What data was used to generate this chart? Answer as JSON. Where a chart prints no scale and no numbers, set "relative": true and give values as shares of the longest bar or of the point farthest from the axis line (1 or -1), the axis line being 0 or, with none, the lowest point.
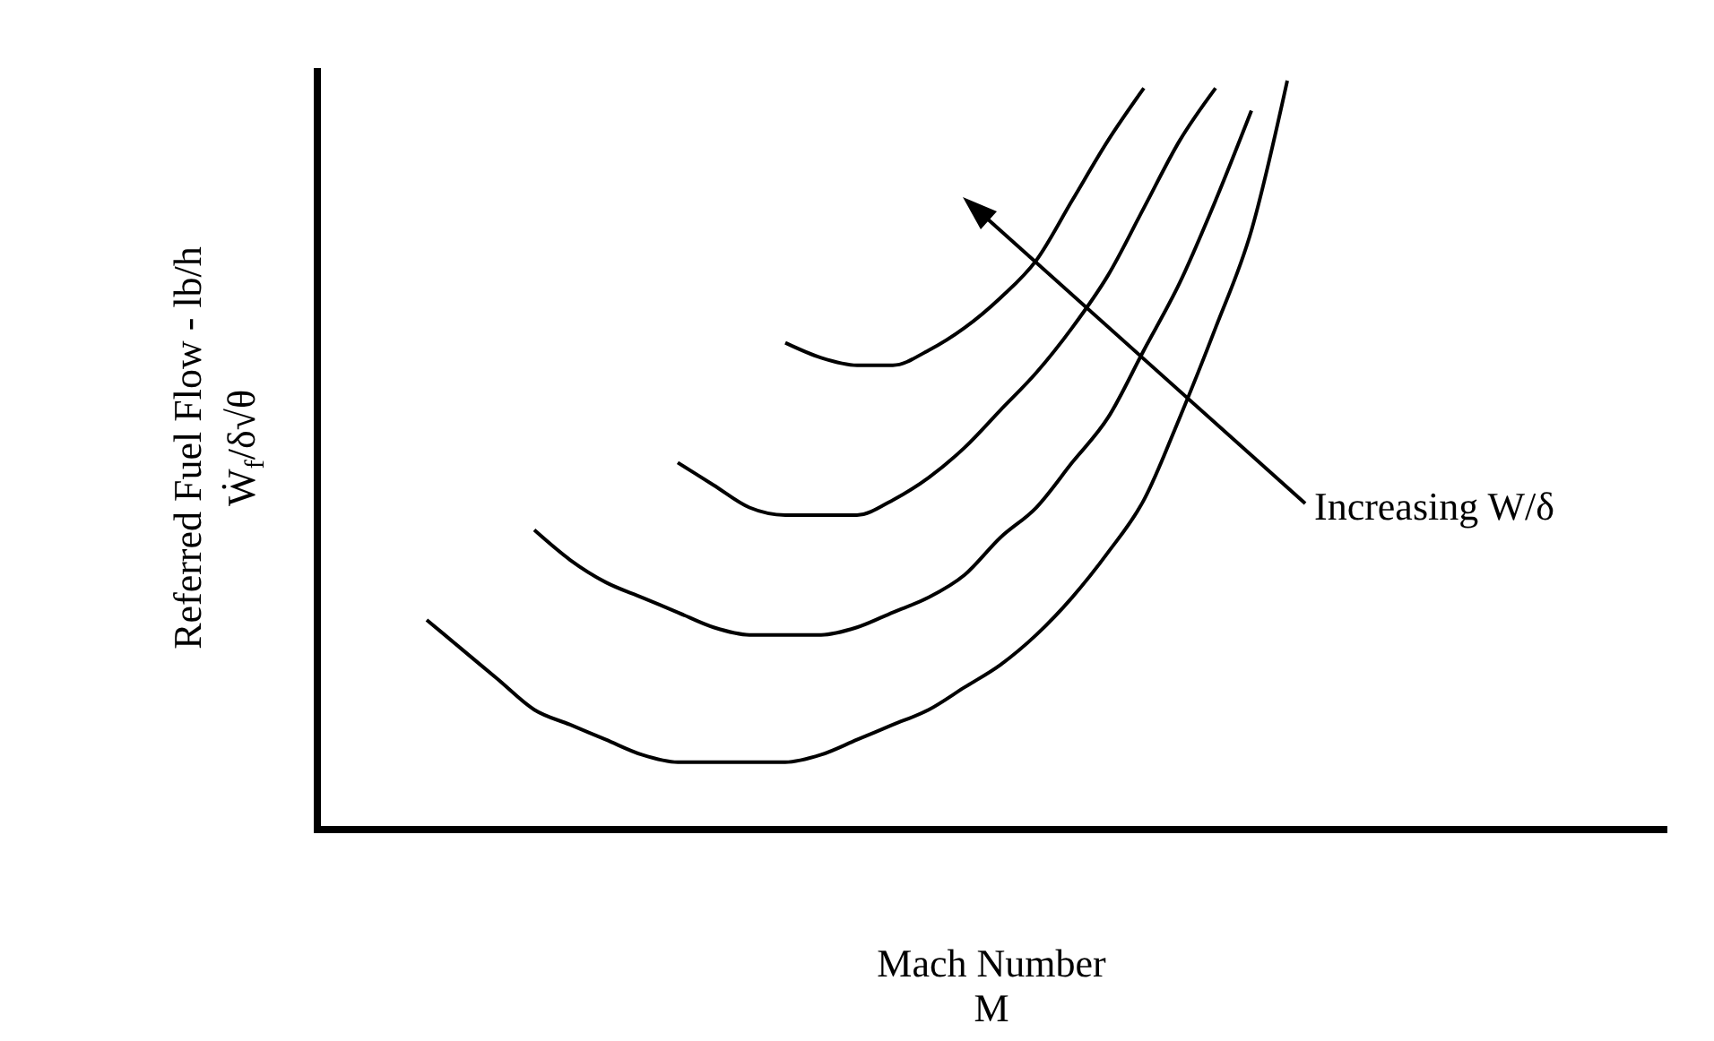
{
  "chart_data": {
    "type": "line",
    "relative": true,
    "xlabel": "Mach Number\nM",
    "ylabel": "Referred Fuel Flow - lb/h\nẆ$_{f}$/δ√θ",
    "marker": "none",
    "line_style": "solid",
    "categories": [
      null,
      null,
      null,
      null,
      null,
      null,
      null,
      null,
      null,
      null,
      null,
      null,
      null,
      null,
      null,
      null,
      null,
      null,
      null,
      null,
      null,
      null,
      null,
      null,
      null
    ],
    "series": [
      {
        "color": "#000000",
        "values": [
          0.28,
          0.24,
          0.2,
          0.16,
          0.14,
          0.12,
          0.1,
          0.09,
          0.09,
          0.09,
          0.09,
          0.1,
          0.12,
          0.14,
          0.16,
          0.19,
          0.22,
          0.26,
          0.31,
          0.37,
          0.44,
          0.55,
          0.67,
          0.8,
          1.0
        ]
      },
      {
        "color": "#000000",
        "values": [
          null,
          null,
          null,
          0.4,
          0.36,
          0.33,
          0.31,
          0.29,
          0.27,
          0.26,
          0.26,
          0.26,
          0.27,
          0.29,
          0.31,
          0.34,
          0.39,
          0.43,
          0.49,
          0.55,
          0.64,
          0.73,
          0.84,
          0.96,
          null
        ]
      },
      {
        "color": "#000000",
        "values": [
          null,
          null,
          null,
          null,
          null,
          null,
          null,
          0.49,
          0.46,
          0.43,
          0.42,
          0.42,
          0.42,
          0.44,
          0.47,
          0.51,
          0.56,
          0.61,
          0.67,
          0.74,
          0.83,
          0.92,
          0.99,
          null,
          null
        ]
      },
      {
        "color": "#000000",
        "values": [
          null,
          null,
          null,
          null,
          null,
          null,
          null,
          null,
          null,
          null,
          0.65,
          0.63,
          0.62,
          0.62,
          0.64,
          0.67,
          0.71,
          0.76,
          0.84,
          0.92,
          0.99,
          null,
          null,
          null,
          null
        ]
      }
    ],
    "annotations": [
      "Increasing W/δ"
    ]
  }
}
